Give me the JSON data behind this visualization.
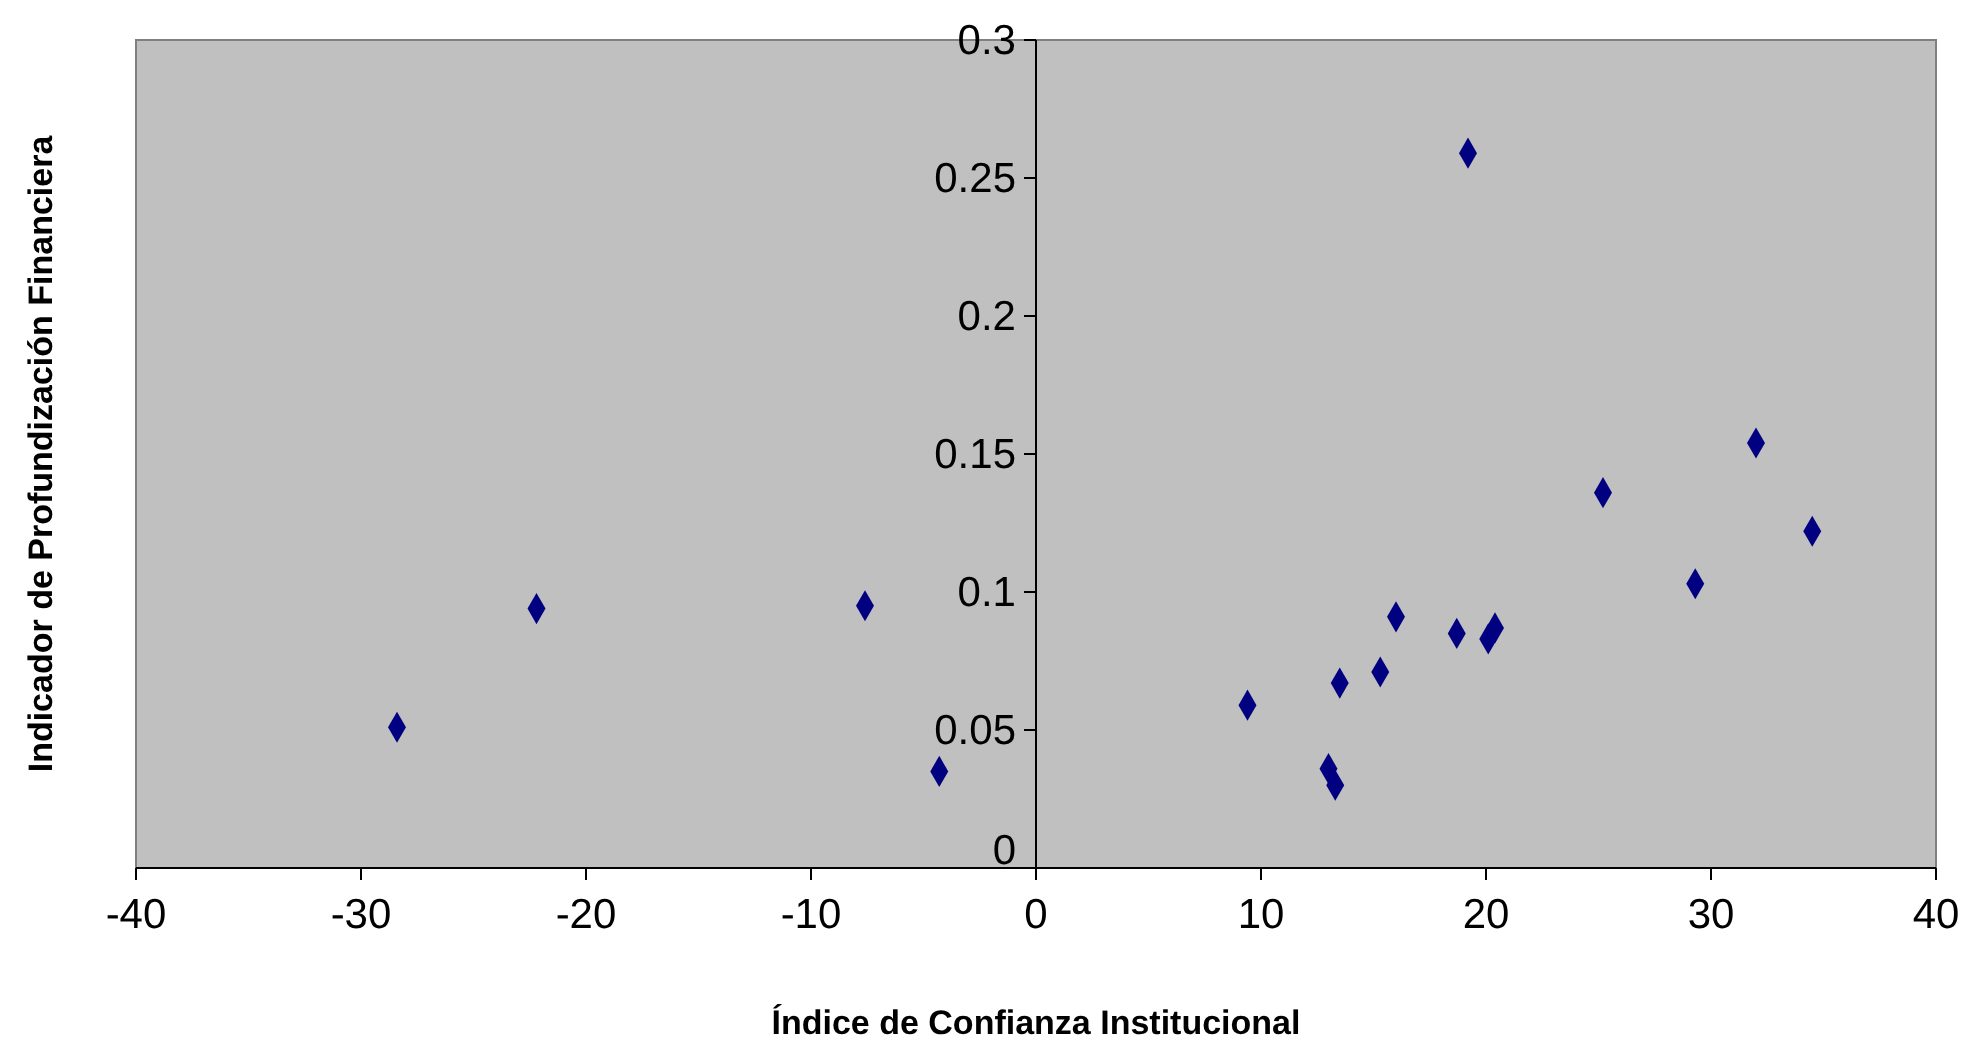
{
  "chart_data": {
    "type": "scatter",
    "xlabel": "Índice de Confianza Institucional",
    "ylabel": "Indicador de Profundización Financiera",
    "x": [
      -28.4,
      -22.2,
      -7.6,
      -4.3,
      9.4,
      13.0,
      13.3,
      13.5,
      15.3,
      16.0,
      18.7,
      19.2,
      20.1,
      20.4,
      25.2,
      29.3,
      32.0,
      34.5
    ],
    "series": [
      {
        "color": "#000080",
        "values": [
          0.051,
          0.094,
          0.095,
          0.035,
          0.059,
          0.036,
          0.03,
          0.067,
          0.071,
          0.091,
          0.085,
          0.259,
          0.083,
          0.087,
          0.136,
          0.103,
          0.154,
          0.122
        ]
      }
    ],
    "xlim": [
      -40,
      40
    ],
    "xticks": [
      -40,
      -30,
      -20,
      -10,
      0,
      10,
      20,
      30,
      40
    ],
    "ylim": [
      0,
      0.3
    ],
    "yticks": [
      0,
      0.05,
      0.1,
      0.15,
      0.2,
      0.25,
      0.3
    ],
    "marker": "diamond",
    "grid": false
  }
}
